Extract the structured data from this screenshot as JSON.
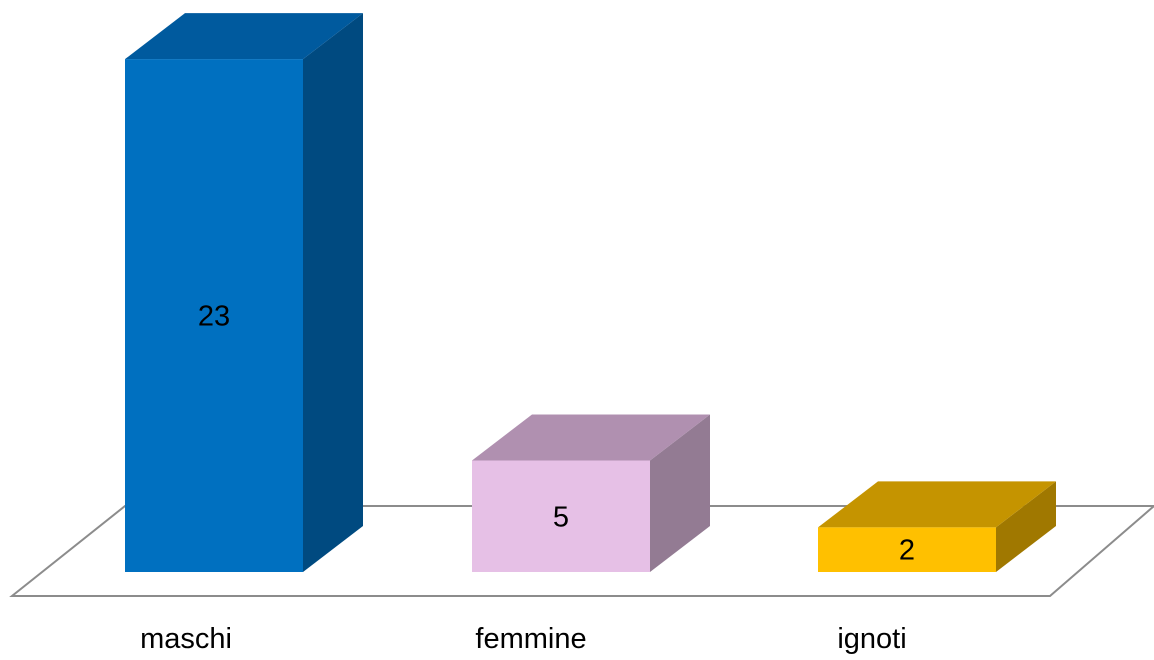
{
  "chart_data": {
    "type": "bar",
    "style": "3d",
    "categories": [
      "maschi",
      "femmine",
      "ignoti"
    ],
    "values": [
      23,
      5,
      2
    ],
    "data_labels": [
      "23",
      "5",
      "2"
    ],
    "colors": [
      {
        "front": "#0070C0",
        "top": "#005A9E",
        "side": "#004A80"
      },
      {
        "front": "#E6C0E6",
        "top": "#B090B0",
        "side": "#937B93"
      },
      {
        "front": "#FFC000",
        "top": "#C59400",
        "side": "#A07800"
      }
    ],
    "floor_color": "#8C8C8C",
    "grid": false,
    "legend": "none"
  }
}
